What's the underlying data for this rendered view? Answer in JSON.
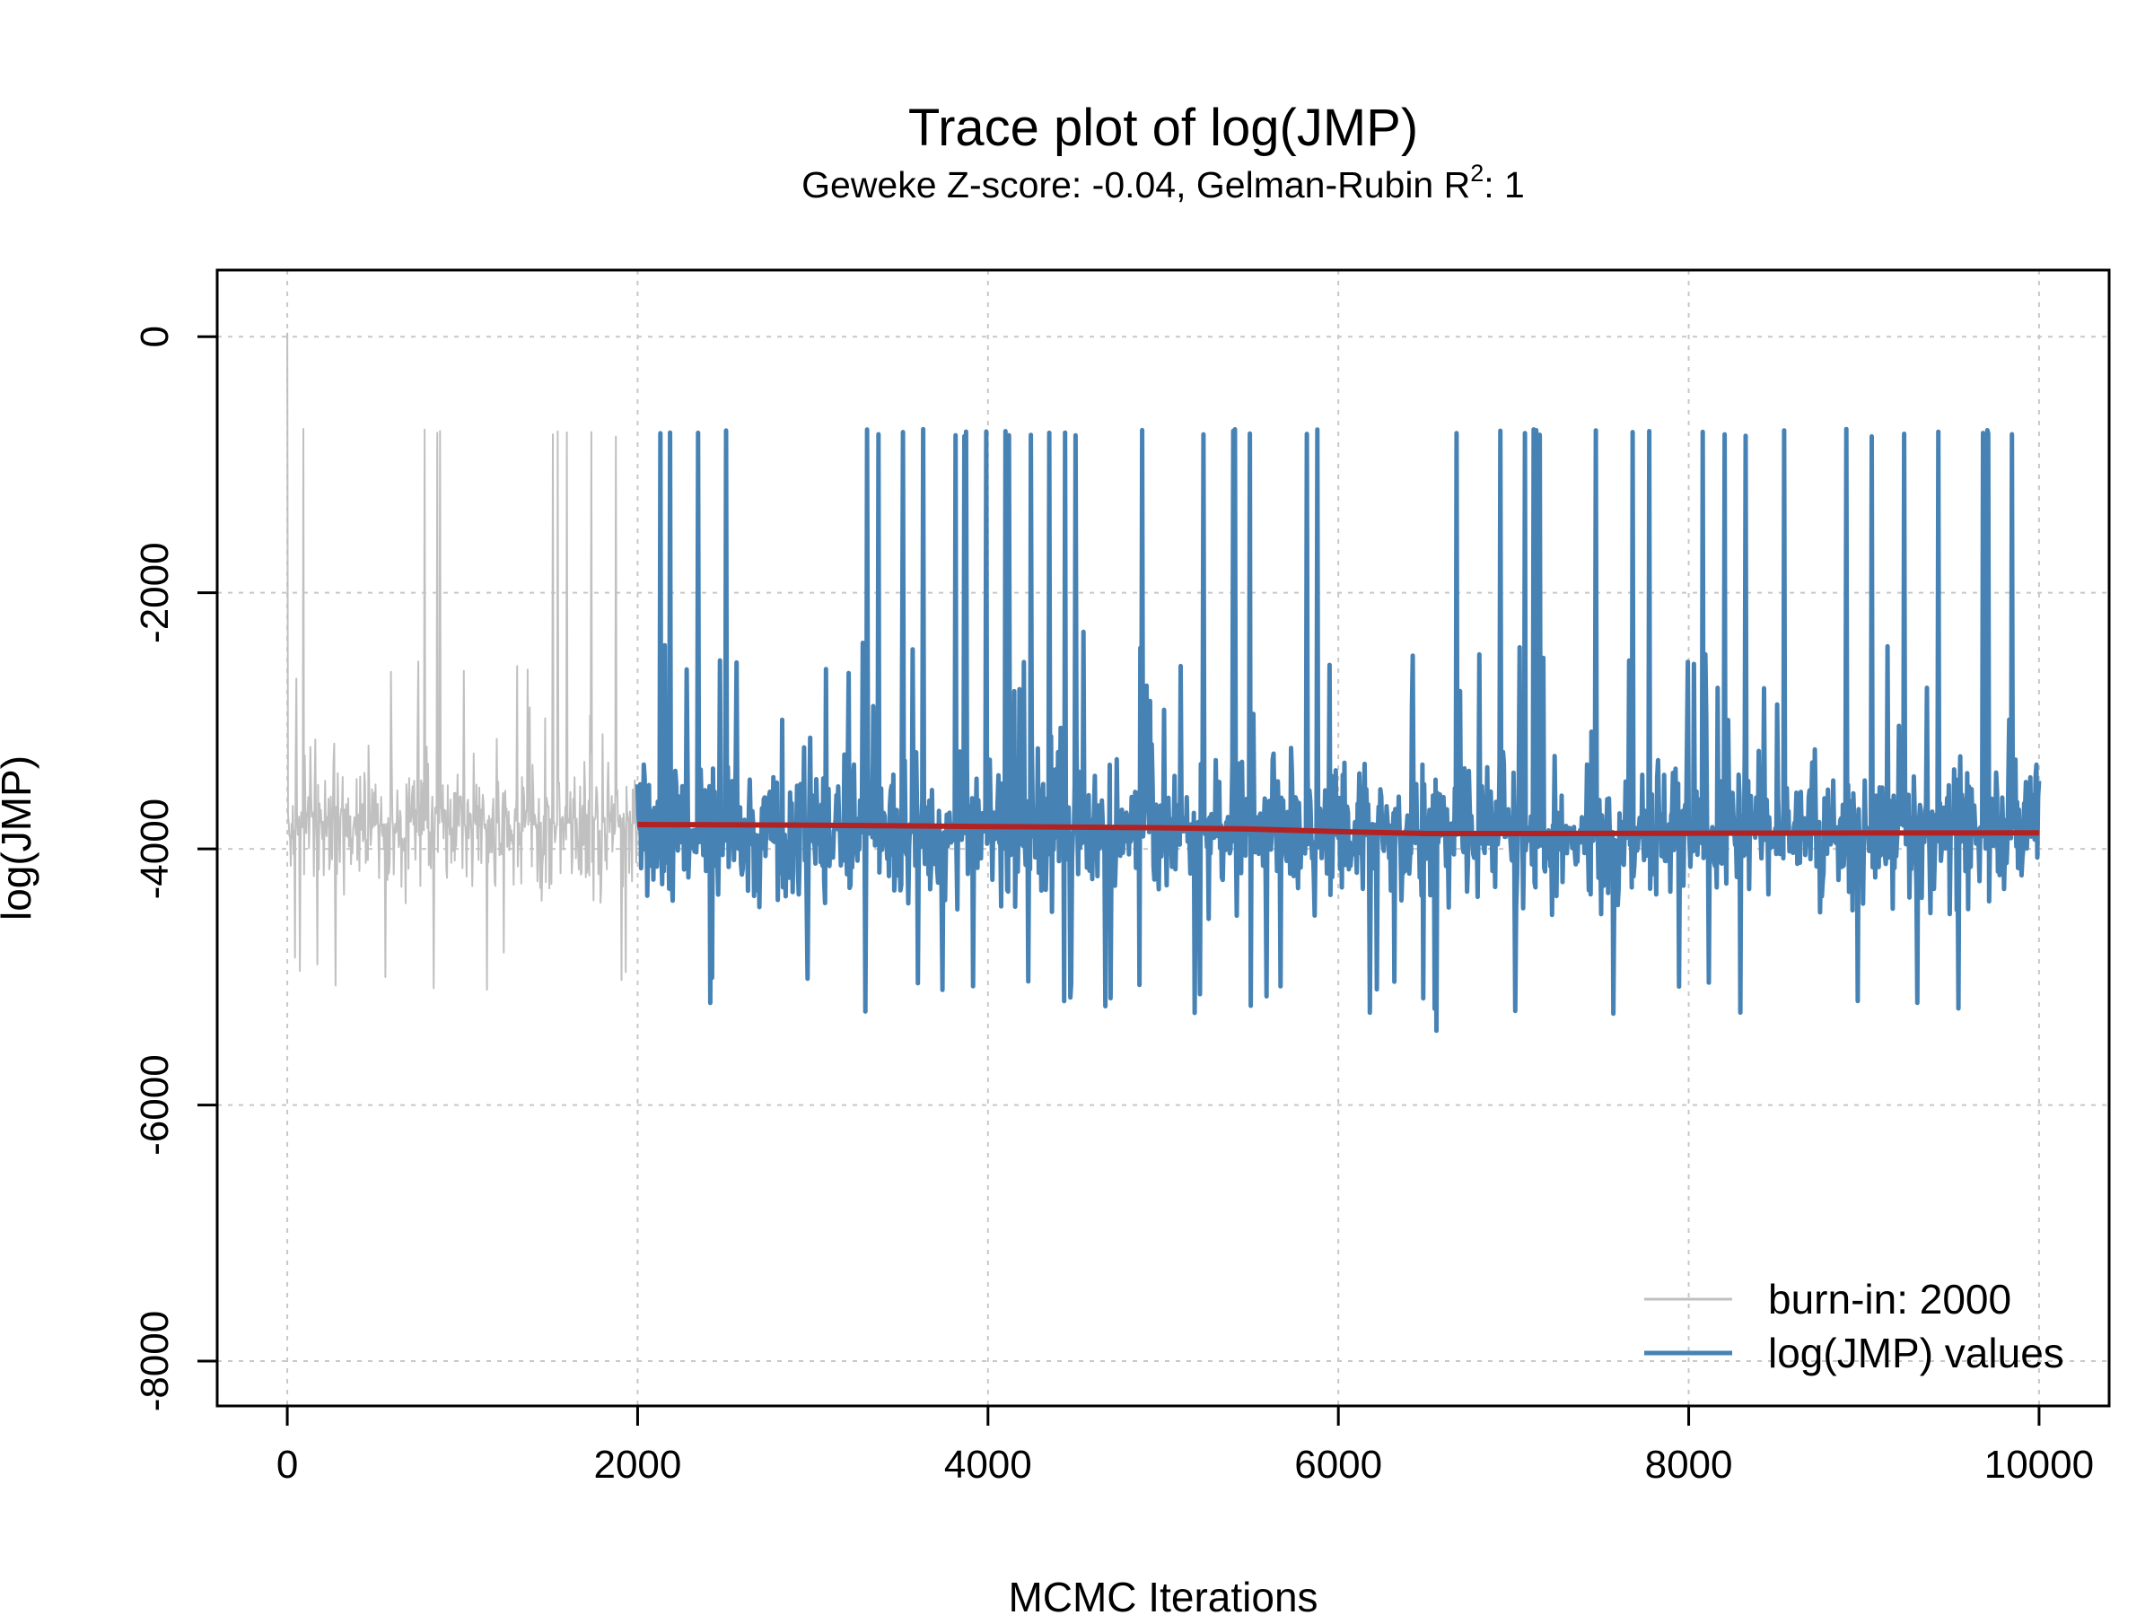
{
  "chart_data": {
    "type": "line",
    "title": "Trace plot of log(JMP)",
    "subtitle_prefix": "Geweke Z-score: -0.04,  Gelman-Rubin R",
    "subtitle_sup": "2",
    "subtitle_suffix": ": 1",
    "xlabel": "MCMC Iterations",
    "ylabel": "log(JMP)",
    "xlim": [
      -400,
      10400
    ],
    "ylim": [
      -8350,
      520
    ],
    "x_ticks": [
      0,
      2000,
      4000,
      6000,
      8000,
      10000
    ],
    "x_tick_labels": [
      "0",
      "2000",
      "4000",
      "6000",
      "8000",
      "10000"
    ],
    "y_ticks": [
      0,
      -2000,
      -4000,
      -6000,
      -8000
    ],
    "y_tick_labels": [
      "0",
      "-2000",
      "-4000",
      "-6000",
      "-8000"
    ],
    "grid": true,
    "legend_position": "bottom-right",
    "burnin_end": 2000,
    "n_iterations": 10000,
    "series": [
      {
        "name": "burn-in: 2000",
        "color": "#c0c0c0",
        "x_range": [
          0,
          2000
        ],
        "baseline": -3800,
        "typical_range": [
          -4800,
          -3000
        ],
        "peak_value": -780,
        "initial_value": 30,
        "min_value": -5100
      },
      {
        "name": "log(JMP) values",
        "color": "#4682b4",
        "x_range": [
          2000,
          10000
        ],
        "baseline": -3870,
        "typical_range": [
          -5000,
          -2800
        ],
        "peak_value": -780,
        "min_value": -5420
      },
      {
        "name": "running mean",
        "color": "#b22222",
        "x": [
          2000,
          3000,
          4000,
          5000,
          5500,
          6000,
          6500,
          7000,
          8000,
          9000,
          10000
        ],
        "y": [
          -3810,
          -3815,
          -3825,
          -3835,
          -3845,
          -3865,
          -3880,
          -3880,
          -3878,
          -3876,
          -3875
        ]
      }
    ]
  }
}
